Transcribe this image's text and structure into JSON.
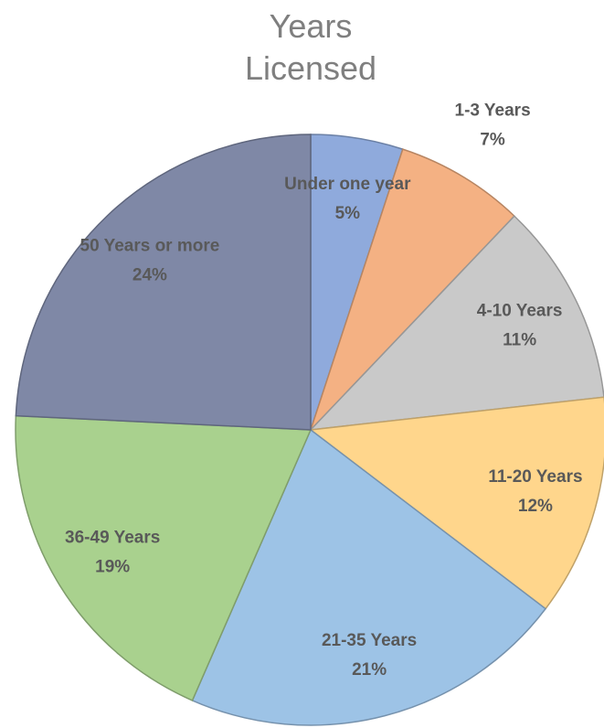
{
  "chart_data": {
    "type": "pie",
    "title": "Years Licensed",
    "categories": [
      "Under one year",
      "1-3 Years",
      "4-10 Years",
      "11-20 Years",
      "21-35 Years",
      "36-49 Years",
      "50 Years or more"
    ],
    "values": [
      5,
      7,
      11,
      12,
      21,
      19,
      24
    ],
    "value_labels": [
      "5%",
      "7%",
      "11%",
      "12%",
      "21%",
      "19%",
      "24%"
    ],
    "colors": [
      "#8faadc",
      "#f4b183",
      "#c9c9c9",
      "#ffd68c",
      "#9dc3e6",
      "#a9d18e",
      "#7f88a6"
    ]
  }
}
